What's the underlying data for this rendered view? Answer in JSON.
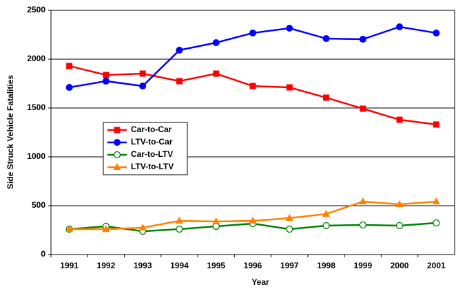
{
  "chart_data": {
    "type": "line",
    "x_label": "Year",
    "y_label": "Side Struck Vehicle Fatalities",
    "categories": [
      "1991",
      "1992",
      "1993",
      "1994",
      "1995",
      "1996",
      "1997",
      "1998",
      "1999",
      "2000",
      "2001"
    ],
    "series": [
      {
        "name": "Car-to-Car",
        "color": "#ff0000",
        "marker": "square",
        "values": [
          1930,
          1838,
          1852,
          1775,
          1852,
          1725,
          1711,
          1606,
          1493,
          1380,
          1331
        ]
      },
      {
        "name": "LTV-to-Car",
        "color": "#0000ff",
        "marker": "circle",
        "values": [
          1711,
          1775,
          1725,
          2092,
          2169,
          2268,
          2317,
          2211,
          2204,
          2331,
          2268
        ]
      },
      {
        "name": "Car-to-LTV",
        "color": "#008000",
        "marker": "open-circle",
        "values": [
          260,
          289,
          239,
          260,
          289,
          317,
          260,
          296,
          303,
          296,
          324
        ]
      },
      {
        "name": "LTV-to-LTV",
        "color": "#ff8000",
        "marker": "triangle",
        "values": [
          260,
          260,
          275,
          345,
          338,
          345,
          373,
          415,
          542,
          514,
          542
        ]
      }
    ],
    "ylim": [
      0,
      2500
    ],
    "yticks": [
      0,
      500,
      1000,
      1500,
      2000,
      2500
    ],
    "grid": true
  }
}
